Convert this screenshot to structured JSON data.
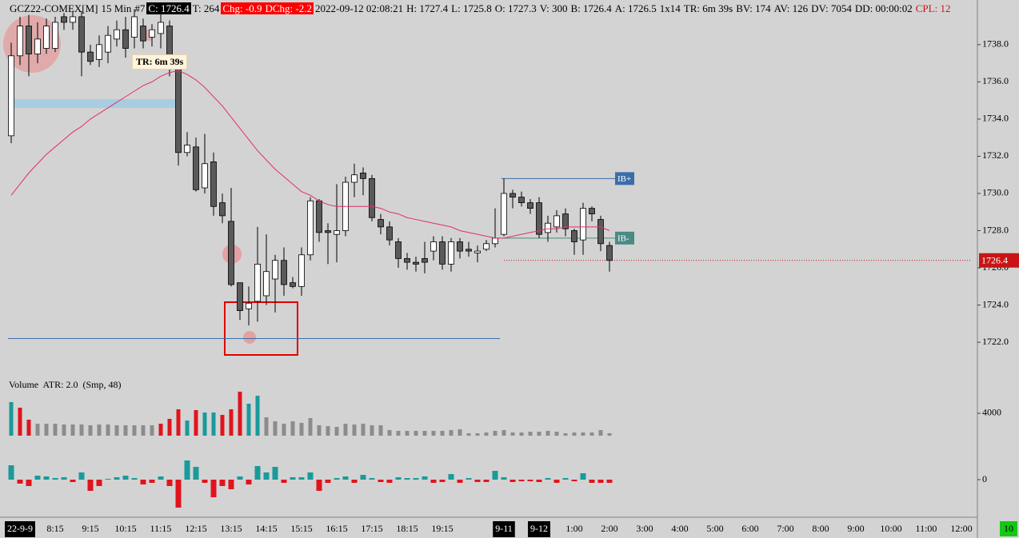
{
  "header": [
    {
      "text": "GCZ22-COMEX[M]",
      "bg": null,
      "color": "#000000"
    },
    {
      "text": "15 Min",
      "bg": null,
      "color": "#000000"
    },
    {
      "text": "#7",
      "bg": null,
      "color": "#000000"
    },
    {
      "text": "C: 1726.4",
      "bg": "#000000",
      "color": "#ffffff"
    },
    {
      "text": "T: 264",
      "bg": null,
      "color": "#000000"
    },
    {
      "text": "Chg: -0.9",
      "bg": "#ff0000",
      "color": "#ffffff"
    },
    {
      "text": "DChg: -2.2",
      "bg": "#ff0000",
      "color": "#ffffff"
    },
    {
      "text": "2022-09-12 02:08:21",
      "bg": null,
      "color": "#000000"
    },
    {
      "text": "H: 1727.4",
      "bg": null,
      "color": "#000000"
    },
    {
      "text": "L: 1725.8",
      "bg": null,
      "color": "#000000"
    },
    {
      "text": "O: 1727.3",
      "bg": null,
      "color": "#000000"
    },
    {
      "text": "V: 300",
      "bg": null,
      "color": "#000000"
    },
    {
      "text": "B: 1726.4",
      "bg": null,
      "color": "#000000"
    },
    {
      "text": "A: 1726.5",
      "bg": null,
      "color": "#000000"
    },
    {
      "text": "1x14",
      "bg": null,
      "color": "#000000"
    },
    {
      "text": "TR: 6m 39s",
      "bg": null,
      "color": "#000000"
    },
    {
      "text": "BV: 174",
      "bg": null,
      "color": "#000000"
    },
    {
      "text": "AV: 126",
      "bg": null,
      "color": "#000000"
    },
    {
      "text": "DV: 7054",
      "bg": null,
      "color": "#000000"
    },
    {
      "text": "DD: 00:00:02",
      "bg": null,
      "color": "#000000"
    },
    {
      "text": "CPL: 12",
      "bg": null,
      "color": "#d01010"
    }
  ],
  "tooltip": "TR: 6m 39s",
  "badge": "10",
  "chart_data": [
    {
      "type": "candlestick",
      "categories": [
        null,
        "22-9-9",
        null,
        null,
        null,
        "8:15",
        null,
        null,
        null,
        "9:15",
        null,
        null,
        null,
        "10:15",
        null,
        null,
        null,
        "11:15",
        null,
        null,
        null,
        "12:15",
        null,
        null,
        null,
        "13:15",
        null,
        null,
        null,
        "14:15",
        null,
        null,
        null,
        "15:15",
        null,
        null,
        null,
        "16:15",
        null,
        null,
        null,
        "17:15",
        null,
        null,
        null,
        "18:15",
        null,
        null,
        null,
        "19:15",
        null,
        null,
        null,
        null,
        null,
        null,
        "9-11",
        null,
        null,
        null,
        "9-12",
        null,
        null,
        null,
        "1:00",
        null,
        null,
        null,
        "2:00",
        null,
        null,
        null,
        "3:00",
        null,
        null,
        null,
        "4:00",
        null,
        null,
        null,
        "5:00",
        null,
        null,
        null,
        "6:00",
        null,
        null,
        null,
        "7:00",
        null,
        null,
        null,
        "8:00",
        null,
        null,
        null,
        "9:00",
        null,
        null,
        null,
        "10:00",
        null,
        null,
        null,
        "11:00",
        null,
        null,
        null,
        "12:00"
      ],
      "boxed_categories": [
        1,
        56,
        60
      ],
      "open": [
        1733.1,
        1737.4,
        1739,
        1737.5,
        1737.8,
        1737.8,
        1739.5,
        1739.2,
        1739.5,
        1737.6,
        1737.2,
        1737.6,
        1738.3,
        1738.8,
        1738.4,
        1739,
        1738.4,
        1738.6,
        1739,
        1736.9,
        1732.2,
        1732.5,
        1730.3,
        1731.7,
        1729.5,
        1728.5,
        1725.2,
        1723.8,
        1724.2,
        1724.5,
        1725.4,
        1726.4,
        1725.2,
        1725,
        1726.7,
        1729.6,
        1728,
        1727.8,
        1728,
        1730.6,
        1731.1,
        1730.8,
        1728.6,
        1728.2,
        1727.4,
        1726.5,
        1726.3,
        1726.5,
        1726.9,
        1727.4,
        1726.2,
        1727.4,
        1727,
        1726.8,
        1727,
        1727.3,
        1727.8,
        1730,
        1729.8,
        1729.5,
        1729.5,
        1727.9,
        1728.2,
        1728.9,
        1728,
        1727.5,
        1729.2,
        1728.6,
        1727.2,
        null,
        null,
        null,
        null,
        null,
        null,
        null,
        null,
        null,
        null,
        null,
        null,
        null,
        null,
        null,
        null,
        null,
        null,
        null,
        null,
        null,
        null,
        null,
        null,
        null,
        null,
        null,
        null,
        null,
        null,
        null,
        null,
        null,
        null,
        null,
        null,
        null,
        null,
        null,
        null
      ],
      "high": [
        1738.1,
        1739.5,
        1739.6,
        1739.2,
        1739.4,
        1739.5,
        1739.7,
        1739.8,
        1739.8,
        1738,
        1738.5,
        1739,
        1739.3,
        1739.5,
        1739.9,
        1739.4,
        1739.1,
        1739.8,
        1739.3,
        1737.3,
        1733.3,
        1733,
        1733.2,
        1732.2,
        1730,
        1730.3,
        1725.2,
        1725,
        1728.2,
        1727.8,
        1726.7,
        1727.1,
        1725.5,
        1727.1,
        1729.8,
        1729.7,
        1728.4,
        1730.5,
        1730.9,
        1731.6,
        1731.4,
        1731,
        1728.9,
        1728.5,
        1727.6,
        1726.8,
        1726.6,
        1727.4,
        1727.7,
        1727.7,
        1727.6,
        1727.6,
        1727.4,
        1727.2,
        1727.5,
        1729.2,
        1730.8,
        1730.2,
        1730.1,
        1729.7,
        1729.8,
        1728.8,
        1729.1,
        1729.2,
        1728.1,
        1729.5,
        1729.3,
        1728.8,
        1727.4,
        null,
        null,
        null,
        null,
        null,
        null,
        null,
        null,
        null,
        null,
        null,
        null,
        null,
        null,
        null,
        null,
        null,
        null,
        null,
        null,
        null,
        null,
        null,
        null,
        null,
        null,
        null,
        null,
        null,
        null,
        null,
        null,
        null,
        null,
        null,
        null,
        null,
        null,
        null,
        null
      ],
      "low": [
        1732.7,
        1736.9,
        1736.3,
        1737,
        1737.5,
        1737.6,
        1738.8,
        1738.8,
        1736.3,
        1736.9,
        1736.8,
        1737,
        1737.9,
        1737.3,
        1737.8,
        1737.8,
        1737.9,
        1737.8,
        1736.3,
        1731.5,
        1732,
        1730.1,
        1730,
        1728.8,
        1728.4,
        1725,
        1723.2,
        1722.9,
        1723.1,
        1724,
        1723.6,
        1724.5,
        1724.9,
        1724.5,
        1726.4,
        1727.4,
        1726.2,
        1726.3,
        1727.7,
        1729.8,
        1729.9,
        1728.5,
        1727.8,
        1727.2,
        1726,
        1725.9,
        1725.8,
        1725.7,
        1726.4,
        1725.9,
        1725.8,
        1726.5,
        1726.6,
        1726.3,
        1726.9,
        1727.1,
        1727.7,
        1729.2,
        1729.3,
        1728.9,
        1727.6,
        1727.4,
        1727.9,
        1727.7,
        1726.7,
        1726.7,
        1728.5,
        1726.9,
        1725.8,
        null,
        null,
        null,
        null,
        null,
        null,
        null,
        null,
        null,
        null,
        null,
        null,
        null,
        null,
        null,
        null,
        null,
        null,
        null,
        null,
        null,
        null,
        null,
        null,
        null,
        null,
        null,
        null,
        null,
        null,
        null,
        null,
        null,
        null,
        null,
        null,
        null,
        null,
        null,
        null
      ],
      "close": [
        1737.4,
        1739,
        1737.5,
        1738.3,
        1739,
        1739.2,
        1739.2,
        1739.5,
        1737.6,
        1737.1,
        1738,
        1738.5,
        1738.8,
        1737.8,
        1739.5,
        1738.2,
        1738.8,
        1739.2,
        1736.9,
        1732.2,
        1732.6,
        1730.2,
        1731.6,
        1729.3,
        1728.8,
        1725.1,
        1723.7,
        1724.1,
        1726.2,
        1725.8,
        1726.4,
        1725.1,
        1725,
        1726.7,
        1729.6,
        1727.9,
        1727.9,
        1728,
        1730.6,
        1731,
        1730.8,
        1728.7,
        1728.2,
        1727.5,
        1726.5,
        1726.3,
        1726.2,
        1726.3,
        1727.4,
        1726.2,
        1727.4,
        1726.9,
        1726.9,
        1726.9,
        1727.3,
        1727.6,
        1730,
        1729.8,
        1729.5,
        1729.2,
        1727.8,
        1728.4,
        1728.8,
        1728.1,
        1727.4,
        1729.2,
        1728.9,
        1727.3,
        1726.4,
        null,
        null,
        null,
        null,
        null,
        null,
        null,
        null,
        null,
        null,
        null,
        null,
        null,
        null,
        null,
        null,
        null,
        null,
        null,
        null,
        null,
        null,
        null,
        null,
        null,
        null,
        null,
        null,
        null,
        null,
        null,
        null,
        null,
        null,
        null,
        null,
        null,
        null,
        null,
        null
      ],
      "up_color": "#ffffff",
      "down_color": "#5a5a5a",
      "overlay": {
        "color": "#e0306a",
        "values": [
          1729.9,
          1730.5,
          1731.1,
          1731.6,
          1732.1,
          1732.5,
          1732.9,
          1733.3,
          1733.6,
          1734,
          1734.3,
          1734.6,
          1734.9,
          1735.2,
          1735.5,
          1735.8,
          1736,
          1736.3,
          1736.5,
          1736.6,
          1736.4,
          1736.1,
          1735.7,
          1735.2,
          1734.7,
          1734.1,
          1733.5,
          1732.9,
          1732.3,
          1731.8,
          1731.3,
          1730.9,
          1730.5,
          1730.1,
          1729.9,
          1729.6,
          1729.4,
          1729.3,
          1729.3,
          1729.3,
          1729.3,
          1729.3,
          1729.2,
          1729,
          1728.9,
          1728.7,
          1728.6,
          1728.5,
          1728.4,
          1728.3,
          1728.2,
          1728,
          1727.9,
          1727.8,
          1727.7,
          1727.6,
          1727.6,
          1727.7,
          1727.8,
          1727.9,
          1728,
          1728.1,
          1728.1,
          1728.2,
          1728.2,
          1728.2,
          1728.2,
          1728.2,
          1728,
          null,
          null,
          null,
          null,
          null,
          null,
          null,
          null,
          null,
          null,
          null,
          null,
          null,
          null,
          null,
          null,
          null,
          null,
          null,
          null,
          null,
          null,
          null,
          null,
          null,
          null,
          null,
          null,
          null,
          null,
          null,
          null,
          null,
          null,
          null,
          null,
          null,
          null,
          null,
          null
        ]
      },
      "levels": [
        {
          "label": "IB+",
          "value": 1730.8,
          "color": "#3a6ea8"
        },
        {
          "label": "IB-",
          "value": 1727.6,
          "color": "#4a8a82"
        }
      ],
      "support_line": {
        "value": 1722.2,
        "color": "#3a6ea8"
      },
      "last_price": {
        "value": 1726.4,
        "color": "#c81414"
      },
      "ylim": [
        1720.2,
        1740.4
      ],
      "yticks": [
        {
          "value": 1722,
          "label": "1722.0"
        },
        {
          "value": 1724,
          "label": "1724.0"
        },
        {
          "value": 1726,
          "label": "1726.0"
        },
        {
          "value": 1728,
          "label": "1728.0"
        },
        {
          "value": 1730,
          "label": "1730.0"
        },
        {
          "value": 1732,
          "label": "1732.0"
        },
        {
          "value": 1734,
          "label": "1734.0"
        },
        {
          "value": 1736,
          "label": "1736.0"
        },
        {
          "value": 1738,
          "label": "1738.0"
        }
      ]
    },
    {
      "type": "volume",
      "title": "Volume  ATR: 2.0  (Smp, 48)",
      "values": [
        6000,
        5000,
        2860,
        2140,
        2140,
        2140,
        2000,
        2000,
        2000,
        1860,
        2000,
        2000,
        1860,
        1860,
        1860,
        1860,
        1860,
        2140,
        3000,
        4710,
        2710,
        4570,
        4140,
        4140,
        3710,
        4710,
        7860,
        5710,
        7140,
        3290,
        2570,
        2140,
        2570,
        2290,
        3140,
        1860,
        1710,
        1570,
        2140,
        2000,
        2140,
        1860,
        1860,
        1000,
        860,
        860,
        860,
        860,
        860,
        860,
        1000,
        1140,
        430,
        430,
        570,
        860,
        1000,
        570,
        570,
        710,
        710,
        860,
        710,
        430,
        570,
        570,
        570,
        1000,
        430
      ],
      "colors": [
        "#1a9a9a",
        "#e0141e",
        "#e0141e",
        "#8c8c8c",
        "#8c8c8c",
        "#8c8c8c",
        "#8c8c8c",
        "#8c8c8c",
        "#8c8c8c",
        "#8c8c8c",
        "#8c8c8c",
        "#8c8c8c",
        "#8c8c8c",
        "#8c8c8c",
        "#8c8c8c",
        "#8c8c8c",
        "#8c8c8c",
        "#e0141e",
        "#e0141e",
        "#e0141e",
        "#1a9a9a",
        "#e0141e",
        "#1a9a9a",
        "#1a9a9a",
        "#e0141e",
        "#e0141e",
        "#e0141e",
        "#1a9a9a",
        "#1a9a9a",
        "#8c8c8c",
        "#8c8c8c",
        "#8c8c8c",
        "#8c8c8c",
        "#8c8c8c",
        "#8c8c8c",
        "#8c8c8c",
        "#8c8c8c",
        "#8c8c8c",
        "#8c8c8c",
        "#8c8c8c",
        "#8c8c8c",
        "#8c8c8c",
        "#8c8c8c",
        "#8c8c8c",
        "#8c8c8c",
        "#8c8c8c",
        "#8c8c8c",
        "#8c8c8c",
        "#8c8c8c",
        "#8c8c8c",
        "#8c8c8c",
        "#8c8c8c",
        "#8c8c8c",
        "#8c8c8c",
        "#8c8c8c",
        "#8c8c8c",
        "#8c8c8c",
        "#8c8c8c",
        "#8c8c8c",
        "#8c8c8c",
        "#8c8c8c",
        "#8c8c8c",
        "#8c8c8c",
        "#8c8c8c",
        "#8c8c8c",
        "#8c8c8c",
        "#8c8c8c",
        "#8c8c8c",
        "#8c8c8c"
      ],
      "ylim": [
        0,
        8140
      ],
      "yticks": [
        4000
      ]
    },
    {
      "type": "delta",
      "values": [
        18,
        -5,
        -8,
        5,
        4,
        2,
        3,
        -3,
        9,
        -14,
        -8,
        1,
        3,
        5,
        2,
        -6,
        -4,
        4,
        -8,
        -35,
        24,
        16,
        -4,
        -22,
        -8,
        -12,
        4,
        -6,
        17,
        9,
        16,
        -4,
        3,
        3,
        9,
        -14,
        -4,
        2,
        4,
        -4,
        6,
        2,
        -3,
        -4,
        3,
        2,
        2,
        4,
        -4,
        -3,
        7,
        -4,
        2,
        -3,
        -3,
        11,
        3,
        -3,
        -2,
        -2,
        -3,
        2,
        -4,
        2,
        -2,
        8,
        -4,
        -4,
        -4
      ],
      "up_color": "#1a9a9a",
      "down_color": "#e0141e",
      "ylim": [
        -45,
        45
      ],
      "yticks": [
        0
      ]
    }
  ]
}
